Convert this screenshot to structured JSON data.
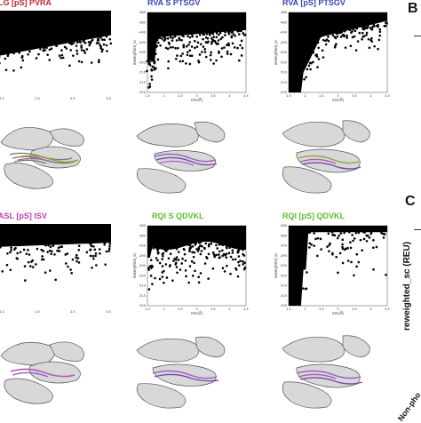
{
  "titles": {
    "top_left": "LG [pS] PVRA",
    "top_mid": "RVA S PTSGV",
    "top_right": "RVA [pS] PTSGV",
    "bot_left": "ASL [pS] ISV",
    "bot_mid": "RQI S QDVKL",
    "bot_right": "RQI [pS] QDVKL"
  },
  "colors": {
    "red": "#c0282d",
    "blue": "#3b44b8",
    "magenta": "#c03fb0",
    "green": "#5cbf2a"
  },
  "panel_letters": {
    "b": "B",
    "c": "C"
  },
  "right_axis": {
    "ylabel": "reweighted_sc (REU)",
    "bottom_label": "Non-pho"
  },
  "plot_texts": {
    "xlabel": "rms(Å)",
    "ylabel": "reweighted_sc",
    "xticks_top_left": [
      "1.5",
      "2.0",
      "2.5",
      "3.0"
    ],
    "xticks_full": [
      "1.5",
      "2",
      "2.5",
      "3",
      "3.5",
      "4",
      "4.5"
    ],
    "yticks": [
      "-480",
      "-485",
      "-490",
      "-495",
      "-500",
      "-505",
      "-510",
      "-515",
      "-520"
    ]
  }
}
